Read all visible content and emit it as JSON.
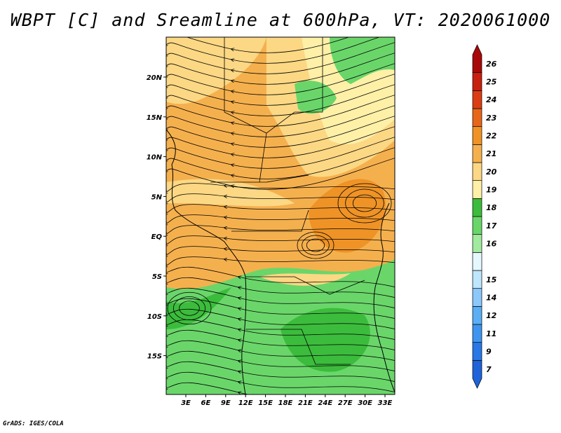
{
  "title": "WBPT [C] and Sreamline at 600hPa, VT: 2020061000",
  "credit": "GrADS: IGES/COLA",
  "map": {
    "lat_labels": [
      "20N",
      "15N",
      "10N",
      "5N",
      "EQ",
      "5S",
      "10S",
      "15S"
    ],
    "lon_labels": [
      "3E",
      "6E",
      "9E",
      "12E",
      "15E",
      "18E",
      "21E",
      "24E",
      "27E",
      "30E",
      "33E"
    ]
  },
  "colorbar": {
    "levels": [
      {
        "label": "7",
        "color": "#1e64d8"
      },
      {
        "label": "9",
        "color": "#2878e6"
      },
      {
        "label": "11",
        "color": "#3c96f0"
      },
      {
        "label": "12",
        "color": "#5aaff5"
      },
      {
        "label": "14",
        "color": "#8cc8fa"
      },
      {
        "label": "15",
        "color": "#bee6fc"
      },
      {
        "label": "",
        "color": "#e6f8ff"
      },
      {
        "label": "16",
        "color": "#a0eba0"
      },
      {
        "label": "17",
        "color": "#6ad66a"
      },
      {
        "label": "18",
        "color": "#3cbc3c"
      },
      {
        "label": "19",
        "color": "#fff0a8"
      },
      {
        "label": "20",
        "color": "#fcd884"
      },
      {
        "label": "21",
        "color": "#f5b04e"
      },
      {
        "label": "22",
        "color": "#ef9326"
      },
      {
        "label": "23",
        "color": "#e8661a"
      },
      {
        "label": "24",
        "color": "#dc3c14"
      },
      {
        "label": "25",
        "color": "#c8200e"
      },
      {
        "label": "26",
        "color": "#a80808"
      }
    ]
  }
}
